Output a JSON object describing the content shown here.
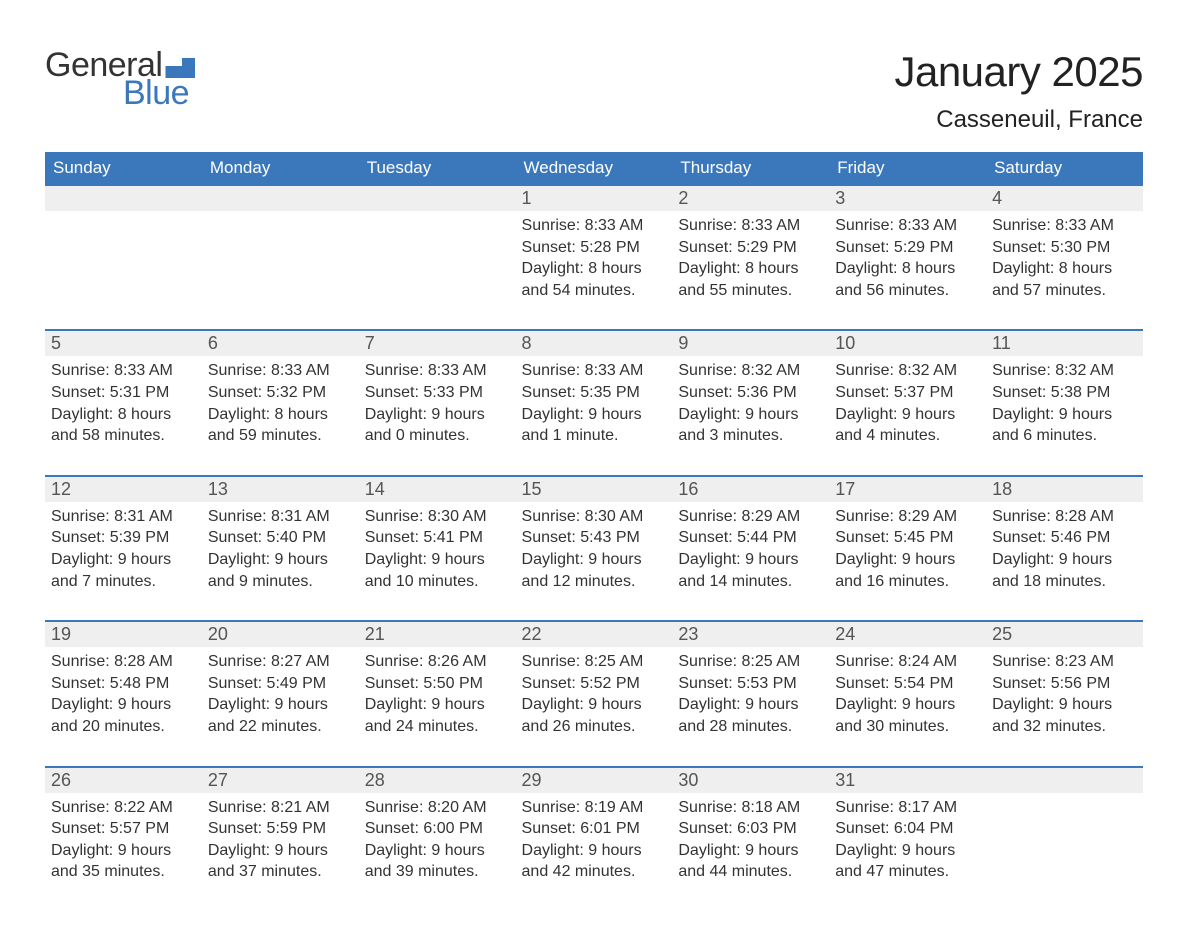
{
  "logo": {
    "text1": "General",
    "text2": "Blue"
  },
  "title": "January 2025",
  "location": "Casseneuil, France",
  "colors": {
    "brand": "#3a78bb",
    "header_bg": "#3a78bb",
    "header_fg": "#ffffff",
    "daynum_bg": "#efefef",
    "text": "#333333",
    "background": "#ffffff"
  },
  "weekdays": [
    "Sunday",
    "Monday",
    "Tuesday",
    "Wednesday",
    "Thursday",
    "Friday",
    "Saturday"
  ],
  "weeks": [
    [
      null,
      null,
      null,
      {
        "n": "1",
        "sr": "Sunrise: 8:33 AM",
        "ss": "Sunset: 5:28 PM",
        "d1": "Daylight: 8 hours",
        "d2": "and 54 minutes."
      },
      {
        "n": "2",
        "sr": "Sunrise: 8:33 AM",
        "ss": "Sunset: 5:29 PM",
        "d1": "Daylight: 8 hours",
        "d2": "and 55 minutes."
      },
      {
        "n": "3",
        "sr": "Sunrise: 8:33 AM",
        "ss": "Sunset: 5:29 PM",
        "d1": "Daylight: 8 hours",
        "d2": "and 56 minutes."
      },
      {
        "n": "4",
        "sr": "Sunrise: 8:33 AM",
        "ss": "Sunset: 5:30 PM",
        "d1": "Daylight: 8 hours",
        "d2": "and 57 minutes."
      }
    ],
    [
      {
        "n": "5",
        "sr": "Sunrise: 8:33 AM",
        "ss": "Sunset: 5:31 PM",
        "d1": "Daylight: 8 hours",
        "d2": "and 58 minutes."
      },
      {
        "n": "6",
        "sr": "Sunrise: 8:33 AM",
        "ss": "Sunset: 5:32 PM",
        "d1": "Daylight: 8 hours",
        "d2": "and 59 minutes."
      },
      {
        "n": "7",
        "sr": "Sunrise: 8:33 AM",
        "ss": "Sunset: 5:33 PM",
        "d1": "Daylight: 9 hours",
        "d2": "and 0 minutes."
      },
      {
        "n": "8",
        "sr": "Sunrise: 8:33 AM",
        "ss": "Sunset: 5:35 PM",
        "d1": "Daylight: 9 hours",
        "d2": "and 1 minute."
      },
      {
        "n": "9",
        "sr": "Sunrise: 8:32 AM",
        "ss": "Sunset: 5:36 PM",
        "d1": "Daylight: 9 hours",
        "d2": "and 3 minutes."
      },
      {
        "n": "10",
        "sr": "Sunrise: 8:32 AM",
        "ss": "Sunset: 5:37 PM",
        "d1": "Daylight: 9 hours",
        "d2": "and 4 minutes."
      },
      {
        "n": "11",
        "sr": "Sunrise: 8:32 AM",
        "ss": "Sunset: 5:38 PM",
        "d1": "Daylight: 9 hours",
        "d2": "and 6 minutes."
      }
    ],
    [
      {
        "n": "12",
        "sr": "Sunrise: 8:31 AM",
        "ss": "Sunset: 5:39 PM",
        "d1": "Daylight: 9 hours",
        "d2": "and 7 minutes."
      },
      {
        "n": "13",
        "sr": "Sunrise: 8:31 AM",
        "ss": "Sunset: 5:40 PM",
        "d1": "Daylight: 9 hours",
        "d2": "and 9 minutes."
      },
      {
        "n": "14",
        "sr": "Sunrise: 8:30 AM",
        "ss": "Sunset: 5:41 PM",
        "d1": "Daylight: 9 hours",
        "d2": "and 10 minutes."
      },
      {
        "n": "15",
        "sr": "Sunrise: 8:30 AM",
        "ss": "Sunset: 5:43 PM",
        "d1": "Daylight: 9 hours",
        "d2": "and 12 minutes."
      },
      {
        "n": "16",
        "sr": "Sunrise: 8:29 AM",
        "ss": "Sunset: 5:44 PM",
        "d1": "Daylight: 9 hours",
        "d2": "and 14 minutes."
      },
      {
        "n": "17",
        "sr": "Sunrise: 8:29 AM",
        "ss": "Sunset: 5:45 PM",
        "d1": "Daylight: 9 hours",
        "d2": "and 16 minutes."
      },
      {
        "n": "18",
        "sr": "Sunrise: 8:28 AM",
        "ss": "Sunset: 5:46 PM",
        "d1": "Daylight: 9 hours",
        "d2": "and 18 minutes."
      }
    ],
    [
      {
        "n": "19",
        "sr": "Sunrise: 8:28 AM",
        "ss": "Sunset: 5:48 PM",
        "d1": "Daylight: 9 hours",
        "d2": "and 20 minutes."
      },
      {
        "n": "20",
        "sr": "Sunrise: 8:27 AM",
        "ss": "Sunset: 5:49 PM",
        "d1": "Daylight: 9 hours",
        "d2": "and 22 minutes."
      },
      {
        "n": "21",
        "sr": "Sunrise: 8:26 AM",
        "ss": "Sunset: 5:50 PM",
        "d1": "Daylight: 9 hours",
        "d2": "and 24 minutes."
      },
      {
        "n": "22",
        "sr": "Sunrise: 8:25 AM",
        "ss": "Sunset: 5:52 PM",
        "d1": "Daylight: 9 hours",
        "d2": "and 26 minutes."
      },
      {
        "n": "23",
        "sr": "Sunrise: 8:25 AM",
        "ss": "Sunset: 5:53 PM",
        "d1": "Daylight: 9 hours",
        "d2": "and 28 minutes."
      },
      {
        "n": "24",
        "sr": "Sunrise: 8:24 AM",
        "ss": "Sunset: 5:54 PM",
        "d1": "Daylight: 9 hours",
        "d2": "and 30 minutes."
      },
      {
        "n": "25",
        "sr": "Sunrise: 8:23 AM",
        "ss": "Sunset: 5:56 PM",
        "d1": "Daylight: 9 hours",
        "d2": "and 32 minutes."
      }
    ],
    [
      {
        "n": "26",
        "sr": "Sunrise: 8:22 AM",
        "ss": "Sunset: 5:57 PM",
        "d1": "Daylight: 9 hours",
        "d2": "and 35 minutes."
      },
      {
        "n": "27",
        "sr": "Sunrise: 8:21 AM",
        "ss": "Sunset: 5:59 PM",
        "d1": "Daylight: 9 hours",
        "d2": "and 37 minutes."
      },
      {
        "n": "28",
        "sr": "Sunrise: 8:20 AM",
        "ss": "Sunset: 6:00 PM",
        "d1": "Daylight: 9 hours",
        "d2": "and 39 minutes."
      },
      {
        "n": "29",
        "sr": "Sunrise: 8:19 AM",
        "ss": "Sunset: 6:01 PM",
        "d1": "Daylight: 9 hours",
        "d2": "and 42 minutes."
      },
      {
        "n": "30",
        "sr": "Sunrise: 8:18 AM",
        "ss": "Sunset: 6:03 PM",
        "d1": "Daylight: 9 hours",
        "d2": "and 44 minutes."
      },
      {
        "n": "31",
        "sr": "Sunrise: 8:17 AM",
        "ss": "Sunset: 6:04 PM",
        "d1": "Daylight: 9 hours",
        "d2": "and 47 minutes."
      },
      null
    ]
  ]
}
